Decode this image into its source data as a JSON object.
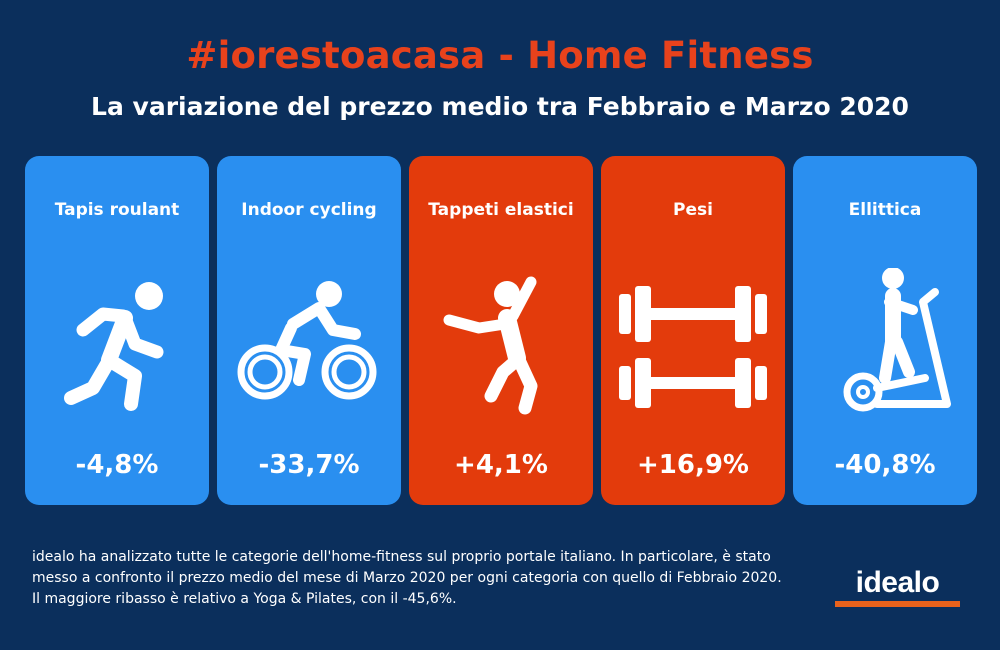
{
  "title": "#iorestoacasa - Home Fitness",
  "subtitle": "La variazione del prezzo medio tra Febbraio e Marzo 2020",
  "cards": [
    {
      "label": "Tapis roulant",
      "value": "-4,8%",
      "icon": "running-icon",
      "color": "#2a8ff0"
    },
    {
      "label": "Indoor cycling",
      "value": "-33,7%",
      "icon": "cycling-icon",
      "color": "#2a8ff0"
    },
    {
      "label": "Tappeti elastici",
      "value": "+4,1%",
      "icon": "jumping-icon",
      "color": "#e33b0c"
    },
    {
      "label": "Pesi",
      "value": "+16,9%",
      "icon": "dumbbell-icon",
      "color": "#e33b0c"
    },
    {
      "label": "Ellittica",
      "value": "-40,8%",
      "icon": "elliptical-icon",
      "color": "#2a8ff0"
    }
  ],
  "footer": {
    "text": "idealo ha analizzato tutte le categorie dell'home-fitness sul proprio portale italiano. In particolare, è stato messo a confronto il prezzo medio del mese di Marzo 2020 per ogni categoria con quello di Febbraio 2020. Il maggiore ribasso è relativo a Yoga & Pilates, con il -45,6%."
  },
  "logo": {
    "text": "idealo",
    "accent": "#e8621c"
  },
  "colors": {
    "background": "#0b2f5c",
    "title": "#e8421c",
    "blue": "#2a8ff0",
    "red": "#e33b0c"
  }
}
